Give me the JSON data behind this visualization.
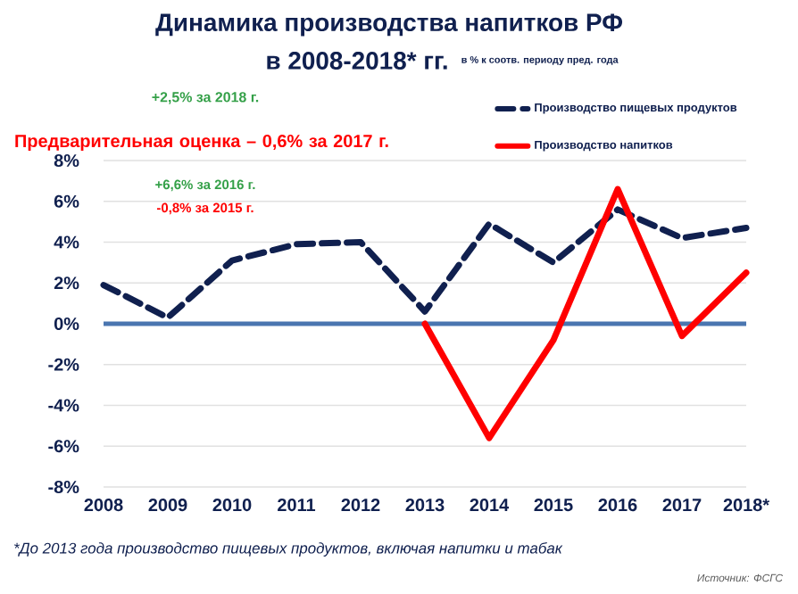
{
  "chart_data": {
    "type": "line",
    "title": "Динамика производства напитков РФ",
    "subtitle": "в 2008-2018* гг.",
    "categories": [
      "2008",
      "2009",
      "2010",
      "2011",
      "2012",
      "2013",
      "2014",
      "2015",
      "2016",
      "2017",
      "2018*"
    ],
    "series": [
      {
        "name": "Производство пищевых продуктов",
        "color": "#10204f",
        "line_style": "dashed",
        "values": [
          1.9,
          0.3,
          3.1,
          3.9,
          4.0,
          0.6,
          4.9,
          3.0,
          5.6,
          4.2,
          4.7
        ]
      },
      {
        "name": "Производство напитков",
        "color": "#ff0000",
        "line_style": "solid",
        "values": [
          null,
          null,
          null,
          null,
          null,
          0.0,
          -5.6,
          -0.8,
          6.6,
          -0.6,
          2.5
        ]
      }
    ],
    "ylim": [
      -8,
      8
    ],
    "yticks": [
      {
        "value": -8,
        "label": "-8%"
      },
      {
        "value": -6,
        "label": "-6%"
      },
      {
        "value": -4,
        "label": "-4%"
      },
      {
        "value": -2,
        "label": "-2%"
      },
      {
        "value": 0,
        "label": "0%"
      },
      {
        "value": 2,
        "label": "2%"
      },
      {
        "value": 4,
        "label": "4%"
      },
      {
        "value": 6,
        "label": "6%"
      },
      {
        "value": 8,
        "label": "8%"
      }
    ],
    "ref_lines": [
      {
        "axis": "y",
        "value": 0,
        "color": "#4a76b0"
      }
    ],
    "grid": "y",
    "legend": "top right",
    "marker": "none",
    "annotations": [
      "в % к соотв. периоду пред. года",
      "+2,5% за 2018 г.",
      "Предварительная оценка – 0,6% за 2017 г.",
      "+6,6% за 2016 г.",
      "-0,8% за 2015 г.",
      "*До 2013 года производство пищевых продуктов, включая напитки и табак",
      "Источник: ФСГС"
    ]
  }
}
